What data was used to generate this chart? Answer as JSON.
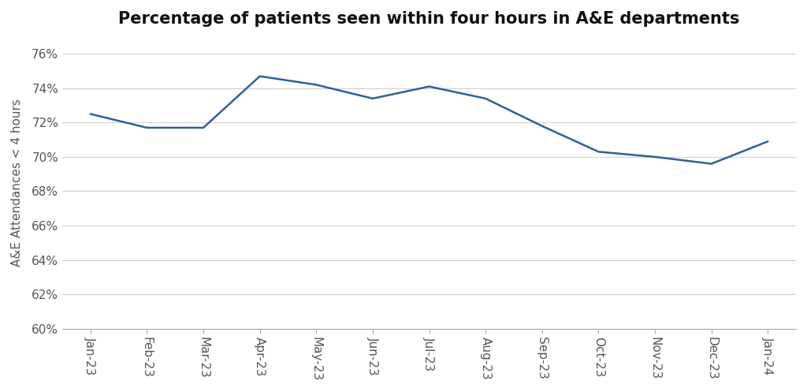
{
  "title": "Percentage of patients seen within four hours in A&E departments",
  "ylabel": "A&E Attendances < 4 hours",
  "categories": [
    "Jan-23",
    "Feb-23",
    "Mar-23",
    "Apr-23",
    "May-23",
    "Jun-23",
    "Jul-23",
    "Aug-23",
    "Sep-23",
    "Oct-23",
    "Nov-23",
    "Dec-23",
    "Jan-24"
  ],
  "values": [
    72.5,
    71.7,
    71.7,
    74.7,
    74.2,
    73.4,
    74.1,
    73.4,
    71.8,
    70.3,
    70.0,
    69.6,
    70.9
  ],
  "line_color": "#2E5FA3",
  "line_width": 1.8,
  "background_color": "#ffffff",
  "grid_color": "#d0d0d0",
  "ylim": [
    60,
    77
  ],
  "yticks": [
    60,
    62,
    64,
    66,
    68,
    70,
    72,
    74,
    76
  ],
  "title_fontsize": 15,
  "axis_label_fontsize": 11,
  "tick_fontsize": 11,
  "ylabel_fontsize": 11
}
